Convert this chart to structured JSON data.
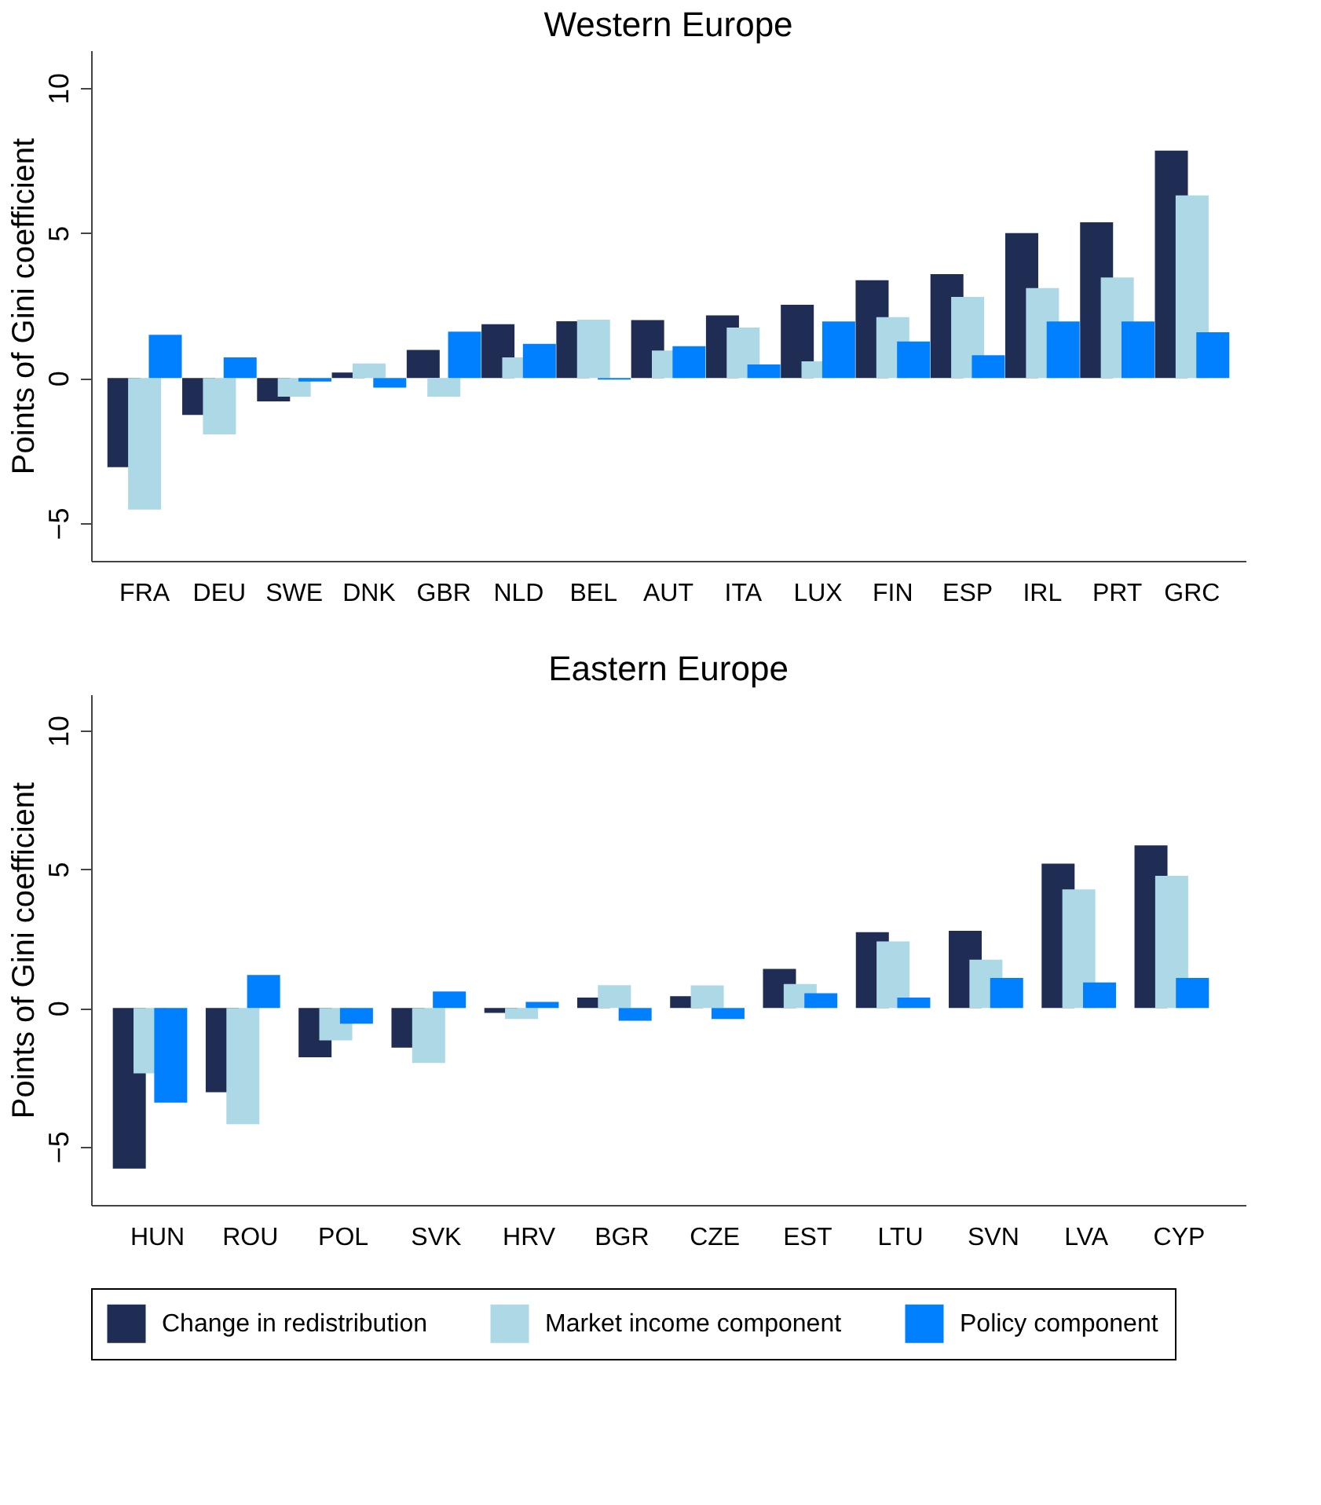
{
  "chart_data": [
    {
      "type": "bar",
      "title": "Western Europe",
      "ylabel": "Points of Gini coefficient",
      "categories": [
        "FRA",
        "DEU",
        "SWE",
        "DNK",
        "GBR",
        "NLD",
        "BEL",
        "AUT",
        "ITA",
        "LUX",
        "FIN",
        "ESP",
        "IRL",
        "PRT",
        "GRC"
      ],
      "series": [
        {
          "name": "Change in redistribution",
          "color": "#1f2d54",
          "values": [
            -3.07,
            -1.27,
            -0.8,
            0.19,
            0.97,
            1.86,
            1.96,
            2.0,
            2.16,
            2.53,
            3.37,
            3.58,
            5.0,
            5.37,
            7.84
          ]
        },
        {
          "name": "Market income component",
          "color": "#add8e6",
          "values": [
            -4.53,
            -1.94,
            -0.64,
            0.5,
            -0.64,
            0.71,
            2.01,
            0.95,
            1.74,
            0.58,
            2.1,
            2.8,
            3.1,
            3.47,
            6.3
          ]
        },
        {
          "name": "Policy component",
          "color": "#0080ff",
          "values": [
            1.49,
            0.71,
            -0.12,
            -0.33,
            1.6,
            1.18,
            -0.05,
            1.1,
            0.47,
            1.95,
            1.26,
            0.79,
            1.95,
            1.95,
            1.58
          ]
        }
      ],
      "ylim": [
        -6.3,
        11.3
      ],
      "yticks": [
        -5,
        0,
        5,
        10
      ],
      "grid": false,
      "legend": "bottom"
    },
    {
      "type": "bar",
      "title": "Eastern Europe",
      "ylabel": "Points of Gini coefficient",
      "categories": [
        "HUN",
        "ROU",
        "POL",
        "SVK",
        "HRV",
        "BGR",
        "CZE",
        "EST",
        "LTU",
        "SVN",
        "LVA",
        "CYP"
      ],
      "series": [
        {
          "name": "Change in redistribution",
          "color": "#1f2d54",
          "values": [
            -5.79,
            -3.04,
            -1.78,
            -1.43,
            -0.18,
            0.37,
            0.42,
            1.41,
            2.73,
            2.78,
            5.2,
            5.86
          ]
        },
        {
          "name": "Market income component",
          "color": "#add8e6",
          "values": [
            -2.36,
            -4.19,
            -1.17,
            -1.98,
            -0.4,
            0.82,
            0.81,
            0.86,
            2.4,
            1.74,
            4.27,
            4.76
          ]
        },
        {
          "name": "Policy component",
          "color": "#0080ff",
          "values": [
            -3.41,
            1.19,
            -0.57,
            0.59,
            0.22,
            -0.46,
            -0.4,
            0.53,
            0.37,
            1.08,
            0.92,
            1.08
          ]
        }
      ],
      "ylim": [
        -7.1,
        11.3
      ],
      "yticks": [
        -5,
        0,
        5,
        10
      ],
      "grid": false,
      "legend": "bottom"
    }
  ]
}
